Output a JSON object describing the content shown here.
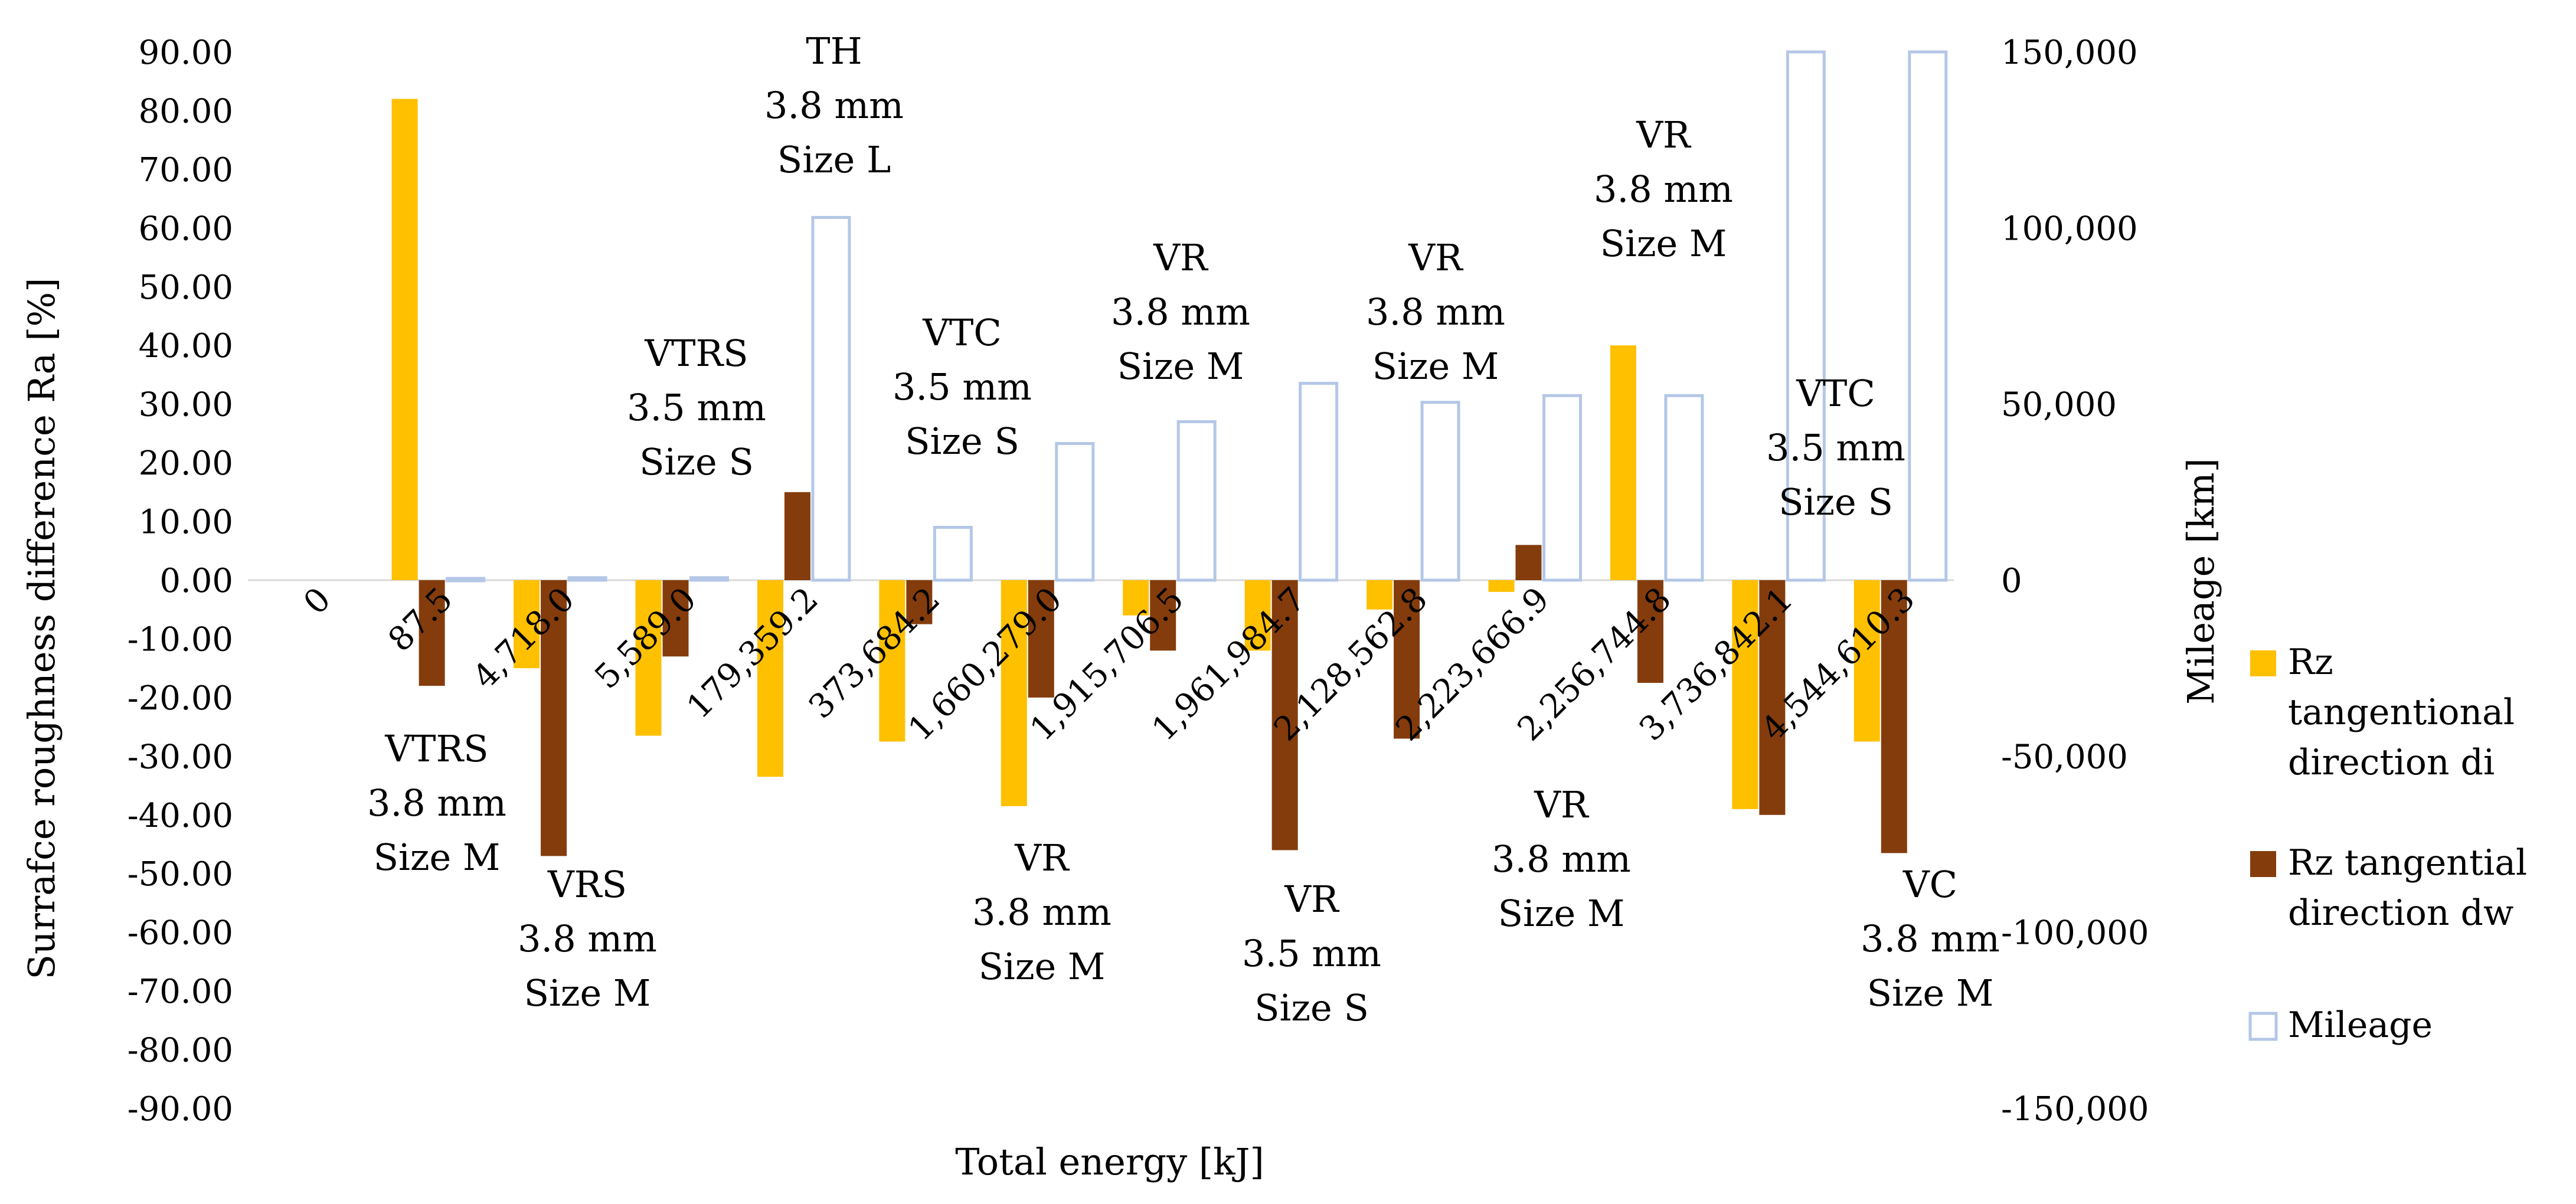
{
  "chart_data": {
    "type": "bar",
    "xlabel": "Total energy [kJ]",
    "ylabel": "Surrafce roughness difference  Ra [%]",
    "ylabel_right": "Mileage [km]",
    "ylim": [
      -90,
      90
    ],
    "ylim_right": [
      -150000,
      150000
    ],
    "yticks": [
      "90.00",
      "80.00",
      "70.00",
      "60.00",
      "50.00",
      "40.00",
      "30.00",
      "20.00",
      "10.00",
      "0.00",
      "-10.00",
      "-20.00",
      "-30.00",
      "-40.00",
      "-50.00",
      "-60.00",
      "-70.00",
      "-80.00",
      "-90.00"
    ],
    "yticks_right": [
      "150,000",
      "100,000",
      "50,000",
      "0",
      "-50,000",
      "-100,000",
      "-150,000"
    ],
    "categories": [
      "0",
      "87.5",
      "4,718.0",
      "5,589.0",
      "179,359.2",
      "373,684.2",
      "1,660,279.0",
      "1,915,706.5",
      "1,961,984.7",
      "2,128,562.8",
      "2,223,666.9",
      "2,256,744.8",
      "3,736,842.1",
      "4,544,610.3"
    ],
    "series": [
      {
        "name": "Rz tangentional direction di",
        "axis": "left",
        "color": "#FFC000",
        "values": [
          0,
          82,
          -15,
          -26.5,
          -33.5,
          -27.5,
          -38.5,
          -6,
          -12,
          -5,
          -2,
          40,
          -39,
          -27.5
        ]
      },
      {
        "name": "Rz tangential direction dw",
        "axis": "left",
        "color": "#843C0C",
        "values": [
          0,
          -18,
          -47,
          -13,
          15,
          -7.5,
          -20,
          -12,
          -46,
          -27,
          6,
          -17.5,
          -40,
          -46.5
        ]
      },
      {
        "name": "Mileage",
        "axis": "right",
        "color": "#B4C7E7",
        "values": [
          0,
          500,
          700,
          700,
          103000,
          15000,
          38800,
          45000,
          55900,
          50500,
          52400,
          52400,
          150000,
          150000
        ]
      }
    ],
    "legend": [
      {
        "key": "di",
        "label_lines": [
          "Rz",
          "tangentional",
          "direction di"
        ]
      },
      {
        "key": "dw",
        "label_lines": [
          "Rz tangential",
          "direction dw"
        ]
      },
      {
        "key": "mileage",
        "label_lines": [
          "Mileage"
        ]
      }
    ],
    "annotations": [
      {
        "id": "th",
        "lines": [
          "TH",
          "3.8 mm",
          "Size L"
        ]
      },
      {
        "id": "vtrs-35",
        "lines": [
          "VTRS",
          "3.5 mm",
          "Size S"
        ]
      },
      {
        "id": "vtc-35-a",
        "lines": [
          "VTC",
          "3.5 mm",
          "Size S"
        ]
      },
      {
        "id": "vr-a",
        "lines": [
          "VR",
          "3.8 mm",
          "Size M"
        ]
      },
      {
        "id": "vr-b",
        "lines": [
          "VR",
          "3.8 mm",
          "Size M"
        ]
      },
      {
        "id": "vr-c",
        "lines": [
          "VR",
          "3.8 mm",
          "Size M"
        ]
      },
      {
        "id": "vtc-35-b",
        "lines": [
          "VTC",
          "3.5 mm",
          "Size S"
        ]
      },
      {
        "id": "vtrs-38",
        "lines": [
          "VTRS",
          "3.8 mm",
          "Size M"
        ]
      },
      {
        "id": "vrs",
        "lines": [
          "VRS",
          "3.8 mm",
          "Size M"
        ]
      },
      {
        "id": "vr-d",
        "lines": [
          "VR",
          "3.8 mm",
          "Size M"
        ]
      },
      {
        "id": "vr-35",
        "lines": [
          "VR",
          "3.5 mm",
          "Size S"
        ]
      },
      {
        "id": "vr-e",
        "lines": [
          "VR",
          "3.8 mm",
          "Size M"
        ]
      },
      {
        "id": "vc",
        "lines": [
          "VC",
          "3.8 mm",
          "Size M"
        ]
      }
    ]
  }
}
